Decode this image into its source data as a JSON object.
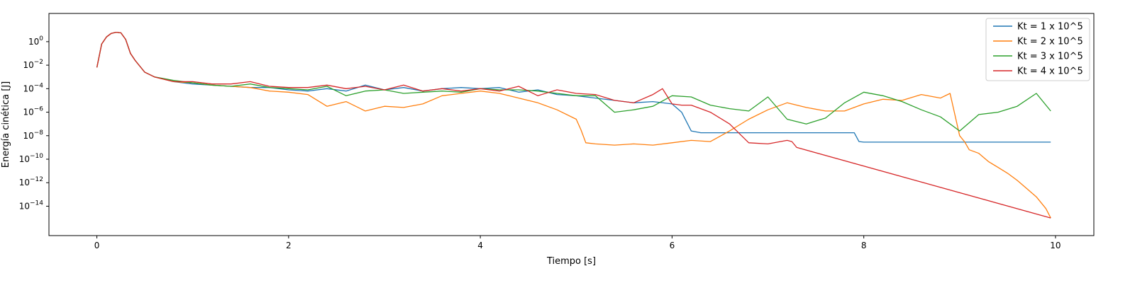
{
  "chart_data": {
    "type": "line",
    "title": "",
    "xlabel": "Tiempo [s]",
    "ylabel": "Energía cinética [J]",
    "xlim": [
      -0.5,
      10.4
    ],
    "ylim_log10": [
      -16.5,
      2.4
    ],
    "yscale": "log",
    "grid": false,
    "legend_position": "top-right",
    "x_ticks": [
      {
        "value": 0,
        "label": "0"
      },
      {
        "value": 2,
        "label": "2"
      },
      {
        "value": 4,
        "label": "4"
      },
      {
        "value": 6,
        "label": "6"
      },
      {
        "value": 8,
        "label": "8"
      },
      {
        "value": 10,
        "label": "10"
      }
    ],
    "y_ticks": [
      {
        "exp": 0,
        "base": "10",
        "sup": "0"
      },
      {
        "exp": -2,
        "base": "10",
        "sup": "−2"
      },
      {
        "exp": -4,
        "base": "10",
        "sup": "−4"
      },
      {
        "exp": -6,
        "base": "10",
        "sup": "−6"
      },
      {
        "exp": -8,
        "base": "10",
        "sup": "−8"
      },
      {
        "exp": -10,
        "base": "10",
        "sup": "−10"
      },
      {
        "exp": -12,
        "base": "10",
        "sup": "−12"
      },
      {
        "exp": -14,
        "base": "10",
        "sup": "−14"
      }
    ],
    "series": [
      {
        "name": "Kt = 1 x 10^5",
        "color": "#1f77b4",
        "x": [
          0,
          0.05,
          0.1,
          0.15,
          0.2,
          0.25,
          0.3,
          0.35,
          0.4,
          0.5,
          0.6,
          0.7,
          0.8,
          1.0,
          1.2,
          1.4,
          1.6,
          1.8,
          2.0,
          2.2,
          2.4,
          2.6,
          2.8,
          3.0,
          3.2,
          3.4,
          3.6,
          3.8,
          4.0,
          4.2,
          4.4,
          4.6,
          4.8,
          5.0,
          5.2,
          5.4,
          5.6,
          5.8,
          6.0,
          6.1,
          6.2,
          6.3,
          6.6,
          7.0,
          7.5,
          7.9,
          7.95,
          8.0,
          8.5,
          9.0,
          9.5,
          9.95
        ],
        "y_log10": [
          -2.2,
          -0.2,
          0.4,
          0.7,
          0.8,
          0.75,
          0.2,
          -1.0,
          -1.6,
          -2.6,
          -3.0,
          -3.2,
          -3.4,
          -3.6,
          -3.7,
          -3.8,
          -3.9,
          -3.9,
          -4.1,
          -4.2,
          -4.0,
          -4.2,
          -3.7,
          -4.1,
          -3.9,
          -4.2,
          -4.0,
          -3.9,
          -4.0,
          -3.9,
          -4.3,
          -4.1,
          -4.5,
          -4.6,
          -4.8,
          -5.0,
          -5.2,
          -5.1,
          -5.3,
          -6.0,
          -7.6,
          -7.75,
          -7.75,
          -7.75,
          -7.75,
          -7.75,
          -8.5,
          -8.55,
          -8.55,
          -8.55,
          -8.55,
          -8.55
        ]
      },
      {
        "name": "Kt = 2 x 10^5",
        "color": "#ff7f0e",
        "x": [
          0,
          0.05,
          0.1,
          0.15,
          0.2,
          0.25,
          0.3,
          0.35,
          0.4,
          0.5,
          0.6,
          0.8,
          1.0,
          1.2,
          1.4,
          1.6,
          1.8,
          2.0,
          2.2,
          2.4,
          2.6,
          2.8,
          3.0,
          3.2,
          3.4,
          3.6,
          3.8,
          4.0,
          4.2,
          4.4,
          4.6,
          4.8,
          5.0,
          5.05,
          5.1,
          5.2,
          5.4,
          5.6,
          5.8,
          6.0,
          6.2,
          6.4,
          6.6,
          6.8,
          7.0,
          7.2,
          7.4,
          7.6,
          7.8,
          8.0,
          8.2,
          8.4,
          8.6,
          8.8,
          8.9,
          9.0,
          9.05,
          9.1,
          9.2,
          9.3,
          9.4,
          9.5,
          9.6,
          9.7,
          9.8,
          9.9,
          9.95
        ],
        "y_log10": [
          -2.2,
          -0.2,
          0.4,
          0.7,
          0.8,
          0.75,
          0.2,
          -1.0,
          -1.6,
          -2.6,
          -3.0,
          -3.4,
          -3.5,
          -3.7,
          -3.8,
          -3.9,
          -4.2,
          -4.3,
          -4.5,
          -5.5,
          -5.1,
          -5.9,
          -5.5,
          -5.6,
          -5.3,
          -4.6,
          -4.4,
          -4.2,
          -4.4,
          -4.8,
          -5.2,
          -5.8,
          -6.6,
          -7.5,
          -8.6,
          -8.7,
          -8.8,
          -8.7,
          -8.8,
          -8.6,
          -8.4,
          -8.5,
          -7.6,
          -6.6,
          -5.8,
          -5.2,
          -5.6,
          -5.9,
          -5.9,
          -5.3,
          -4.9,
          -5.0,
          -4.5,
          -4.8,
          -4.4,
          -8.0,
          -8.5,
          -9.2,
          -9.5,
          -10.2,
          -10.7,
          -11.2,
          -11.8,
          -12.5,
          -13.2,
          -14.2,
          -15.0
        ]
      },
      {
        "name": "Kt = 3 x 10^5",
        "color": "#2ca02c",
        "x": [
          0,
          0.05,
          0.1,
          0.15,
          0.2,
          0.25,
          0.3,
          0.35,
          0.4,
          0.5,
          0.6,
          0.8,
          1.0,
          1.2,
          1.4,
          1.6,
          1.8,
          2.0,
          2.2,
          2.4,
          2.6,
          2.8,
          3.0,
          3.2,
          3.4,
          3.6,
          3.8,
          4.0,
          4.2,
          4.4,
          4.6,
          4.8,
          5.0,
          5.2,
          5.4,
          5.6,
          5.8,
          6.0,
          6.2,
          6.4,
          6.6,
          6.8,
          7.0,
          7.2,
          7.4,
          7.6,
          7.8,
          8.0,
          8.2,
          8.4,
          8.6,
          8.8,
          9.0,
          9.2,
          9.4,
          9.6,
          9.8,
          9.95
        ],
        "y_log10": [
          -2.2,
          -0.2,
          0.4,
          0.7,
          0.8,
          0.75,
          0.2,
          -1.0,
          -1.6,
          -2.6,
          -3.0,
          -3.3,
          -3.5,
          -3.7,
          -3.8,
          -3.6,
          -3.9,
          -4.0,
          -4.1,
          -3.8,
          -4.6,
          -4.2,
          -4.1,
          -4.4,
          -4.3,
          -4.2,
          -4.3,
          -4.0,
          -4.1,
          -4.1,
          -4.2,
          -4.4,
          -4.6,
          -4.6,
          -6.0,
          -5.8,
          -5.5,
          -4.6,
          -4.7,
          -5.4,
          -5.7,
          -5.9,
          -4.7,
          -6.6,
          -7.0,
          -6.5,
          -5.2,
          -4.3,
          -4.6,
          -5.1,
          -5.8,
          -6.4,
          -7.6,
          -6.2,
          -6.0,
          -5.5,
          -4.4,
          -5.9
        ]
      },
      {
        "name": "Kt = 4 x 10^5",
        "color": "#d62728",
        "x": [
          0,
          0.05,
          0.1,
          0.15,
          0.2,
          0.25,
          0.3,
          0.35,
          0.4,
          0.5,
          0.6,
          0.8,
          1.0,
          1.2,
          1.4,
          1.6,
          1.8,
          2.0,
          2.2,
          2.4,
          2.6,
          2.8,
          3.0,
          3.2,
          3.4,
          3.6,
          3.8,
          4.0,
          4.2,
          4.4,
          4.6,
          4.8,
          5.0,
          5.2,
          5.4,
          5.6,
          5.8,
          5.9,
          6.0,
          6.1,
          6.2,
          6.4,
          6.6,
          6.8,
          7.0,
          7.2,
          7.25,
          7.3,
          9.95
        ],
        "y_log10": [
          -2.2,
          -0.2,
          0.4,
          0.7,
          0.8,
          0.75,
          0.2,
          -1.0,
          -1.6,
          -2.6,
          -3.0,
          -3.4,
          -3.4,
          -3.6,
          -3.6,
          -3.4,
          -3.8,
          -3.9,
          -3.9,
          -3.7,
          -4.0,
          -3.8,
          -4.1,
          -3.7,
          -4.2,
          -4.0,
          -4.2,
          -4.0,
          -4.2,
          -3.8,
          -4.6,
          -4.1,
          -4.4,
          -4.5,
          -5.0,
          -5.2,
          -4.5,
          -4.0,
          -5.3,
          -5.4,
          -5.4,
          -6.0,
          -7.0,
          -8.6,
          -8.7,
          -8.4,
          -8.5,
          -9.0,
          -15.0
        ]
      }
    ]
  }
}
